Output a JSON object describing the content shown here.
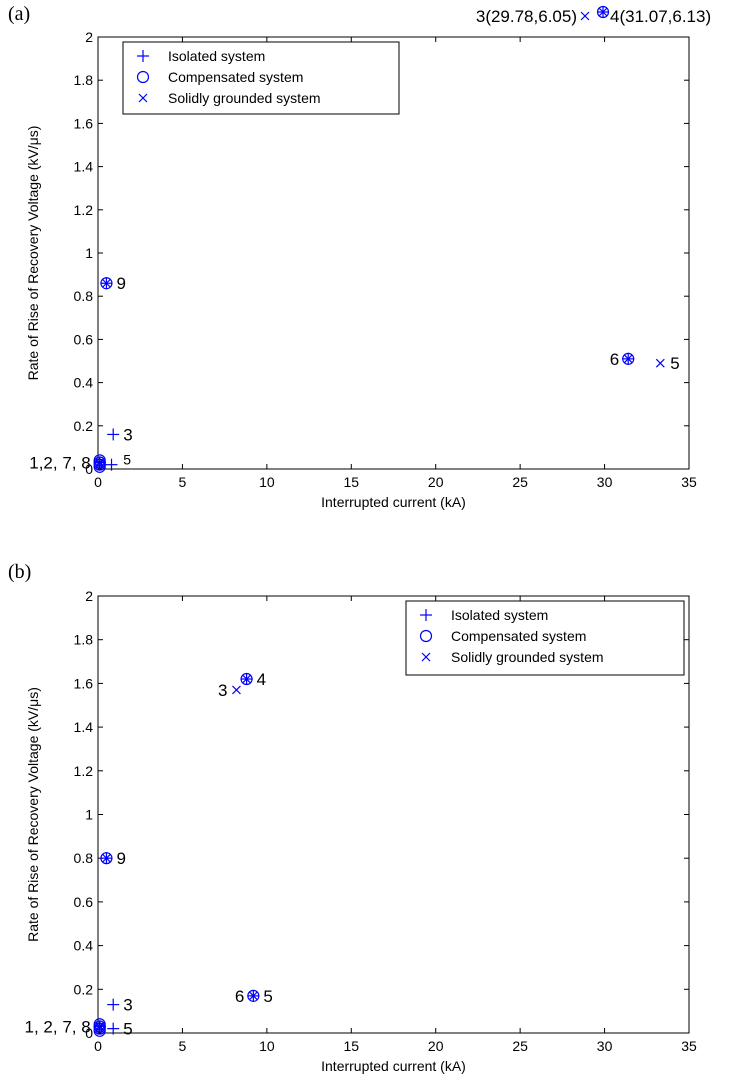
{
  "chart_data": [
    {
      "type": "scatter",
      "panel_label": "(a)",
      "xlabel": "Interrupted current (kA)",
      "ylabel": "Rate of Rise of Recovery Voltage (kV/μs)",
      "xlim": [
        0,
        35
      ],
      "ylim": [
        0,
        2
      ],
      "xticks": [
        0,
        5,
        10,
        15,
        20,
        25,
        30,
        35
      ],
      "yticks": [
        0,
        0.2,
        0.4,
        0.6,
        0.8,
        1,
        1.2,
        1.4,
        1.6,
        1.8,
        2
      ],
      "ytick_labels": [
        "0",
        "0.2",
        "0.4",
        "0.6",
        "0.8",
        "1",
        "1.2",
        "1.4",
        "1.6",
        "1.8",
        "2"
      ],
      "grid": false,
      "legend_position": "top-left",
      "colors": {
        "marker": "#0000ff",
        "axis": "#000000"
      },
      "series": [
        {
          "name": "Isolated system",
          "marker": "plus",
          "x": [
            0.1,
            0.1,
            0.9,
            0.8,
            0.1,
            31.4,
            0.1,
            0.1,
            0.5
          ],
          "y": [
            0.03,
            0.03,
            0.16,
            0.02,
            0.03,
            0.51,
            0.03,
            0.03,
            0.86
          ]
        },
        {
          "name": "Compensated system",
          "marker": "circle",
          "x": [
            0.1,
            0.1,
            0.1,
            0.1,
            31.4,
            0.5
          ],
          "y": [
            0.02,
            0.04,
            0.01,
            0.03,
            0.51,
            0.86
          ]
        },
        {
          "name": "Solidly grounded system",
          "marker": "x",
          "x": [
            0.1,
            0.1,
            33.3,
            31.4,
            0.1,
            0.1,
            0.5
          ],
          "y": [
            0.03,
            0.02,
            0.49,
            0.51,
            0.03,
            0.03,
            0.86
          ]
        }
      ],
      "annotations": [
        {
          "text": "9",
          "x": 0.5,
          "y": 0.86,
          "size": "large"
        },
        {
          "text": "6",
          "x": 31.4,
          "y": 0.51,
          "size": "large",
          "side": "left"
        },
        {
          "text": "5",
          "x": 33.3,
          "y": 0.49,
          "size": "large"
        },
        {
          "text": "3",
          "x": 0.9,
          "y": 0.16,
          "size": "large"
        },
        {
          "text": "5",
          "x": 0.9,
          "y": 0.02,
          "size": "small"
        },
        {
          "text": "1,2, 7, 8",
          "x": 0.1,
          "y": 0.03,
          "size": "large",
          "side": "left"
        }
      ],
      "offscale_labels": [
        {
          "text": "3(29.78,6.05)",
          "marker": "x"
        },
        {
          "text": "4(31.07,6.13)",
          "marker": "combined"
        }
      ]
    },
    {
      "type": "scatter",
      "panel_label": "(b)",
      "xlabel": "Interrupted current (kA)",
      "ylabel": "Rate of Rise of Recovery Voltage (kV/μs)",
      "xlim": [
        0,
        35
      ],
      "ylim": [
        0,
        2
      ],
      "xticks": [
        0,
        5,
        10,
        15,
        20,
        25,
        30,
        35
      ],
      "yticks": [
        0,
        0.2,
        0.4,
        0.6,
        0.8,
        1,
        1.2,
        1.4,
        1.6,
        1.8,
        2
      ],
      "ytick_labels": [
        "0",
        "0.2",
        "0.4",
        "0.6",
        "0.8",
        "1",
        "1.2",
        "1.4",
        "1.6",
        "1.8",
        "2"
      ],
      "grid": false,
      "legend_position": "top-right",
      "colors": {
        "marker": "#0000ff",
        "axis": "#000000"
      },
      "series": [
        {
          "name": "Isolated system",
          "marker": "plus",
          "x": [
            0.1,
            0.1,
            0.9,
            8.8,
            0.9,
            9.2,
            0.1,
            0.1,
            0.5
          ],
          "y": [
            0.03,
            0.03,
            0.13,
            1.62,
            0.02,
            0.17,
            0.03,
            0.03,
            0.8
          ]
        },
        {
          "name": "Compensated system",
          "marker": "circle",
          "x": [
            0.1,
            0.1,
            0.1,
            0.1,
            8.8,
            9.2,
            0.5
          ],
          "y": [
            0.02,
            0.04,
            0.01,
            0.03,
            1.62,
            0.17,
            0.8
          ]
        },
        {
          "name": "Solidly grounded system",
          "marker": "x",
          "x": [
            0.1,
            0.1,
            8.2,
            8.8,
            9.2,
            0.1,
            0.1,
            0.5
          ],
          "y": [
            0.03,
            0.02,
            1.57,
            1.62,
            0.17,
            0.03,
            0.03,
            0.8
          ]
        }
      ],
      "annotations": [
        {
          "text": "4",
          "x": 8.8,
          "y": 1.62,
          "size": "large"
        },
        {
          "text": "3",
          "x": 8.2,
          "y": 1.57,
          "size": "large",
          "side": "left"
        },
        {
          "text": "9",
          "x": 0.5,
          "y": 0.8,
          "size": "large"
        },
        {
          "text": "6",
          "x": 9.2,
          "y": 0.17,
          "size": "large",
          "side": "left"
        },
        {
          "text": "5",
          "x": 9.2,
          "y": 0.17,
          "size": "large"
        },
        {
          "text": "3",
          "x": 0.9,
          "y": 0.13,
          "size": "large"
        },
        {
          "text": "5",
          "x": 0.9,
          "y": 0.02,
          "size": "large"
        },
        {
          "text": "1, 2, 7, 8",
          "x": 0.1,
          "y": 0.03,
          "size": "large",
          "side": "left"
        }
      ],
      "offscale_labels": []
    }
  ]
}
